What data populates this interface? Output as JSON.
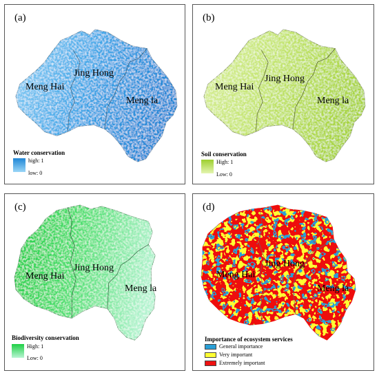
{
  "regions": {
    "west": "Meng Hai",
    "center": "Jing Hong",
    "east": "Meng la"
  },
  "panels": [
    {
      "label": "(a)",
      "legend_title": "Water conservation",
      "high": "high: 1",
      "low": "low: 0",
      "colors": {
        "light": "#8fd0f5",
        "mid": "#3fa7e8",
        "dark": "#1f86d6"
      }
    },
    {
      "label": "(b)",
      "legend_title": "Soil conservation",
      "high": "High: 1",
      "low": "Low: 0",
      "colors": {
        "light": "#d9ef9a",
        "mid": "#b7df55",
        "dark": "#9dcf2f"
      }
    },
    {
      "label": "(c)",
      "legend_title": "Biodiversity conservation",
      "high": "High:  1",
      "low": "Low:  0",
      "colors": {
        "light": "#a8f0c6",
        "mid": "#4ddf6f",
        "dark": "#1fcf45"
      }
    },
    {
      "label": "(d)",
      "legend_title": "Importance of ecosystem services",
      "categories": [
        {
          "name": "General importance",
          "color": "#2a9fd6"
        },
        {
          "name": "Very important",
          "color": "#ffff33"
        },
        {
          "name": "Extremely important",
          "color": "#ee1111"
        }
      ]
    }
  ]
}
